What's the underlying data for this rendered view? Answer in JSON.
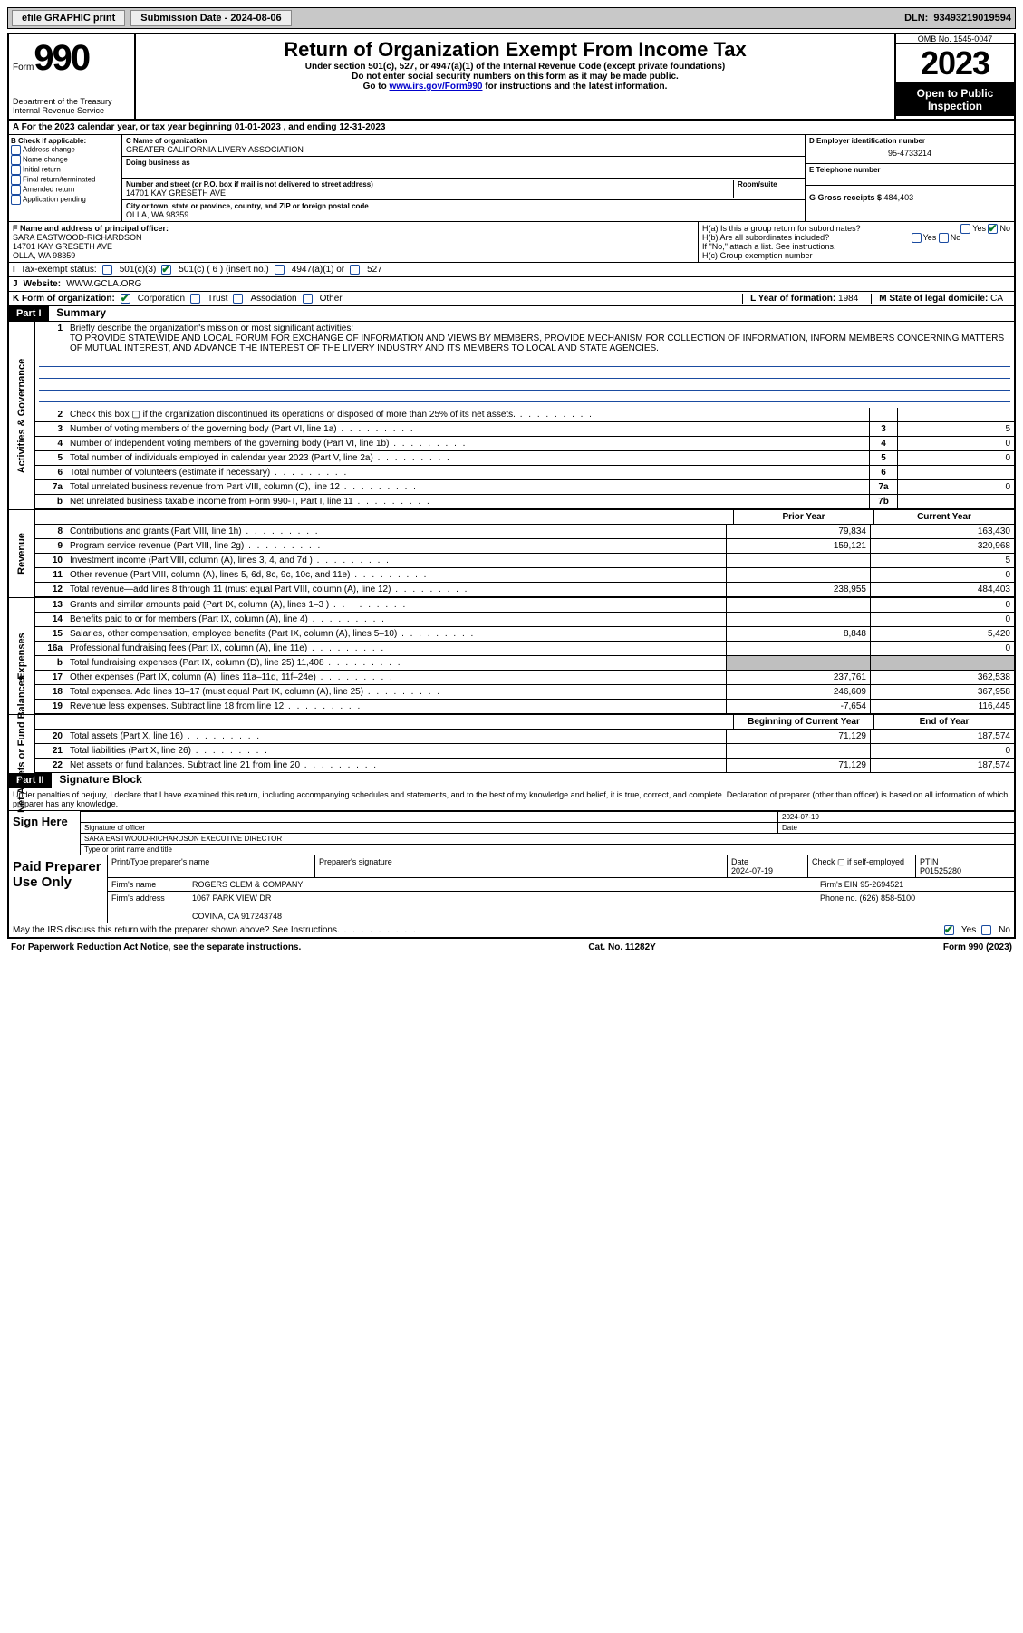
{
  "topbar": {
    "efile": "efile GRAPHIC print",
    "subdate_lbl": "Submission Date - ",
    "subdate": "2024-08-06",
    "dln_lbl": "DLN: ",
    "dln": "93493219019594"
  },
  "header": {
    "form_word": "Form",
    "form_no": "990",
    "dept": "Department of the Treasury",
    "irs": "Internal Revenue Service",
    "title": "Return of Organization Exempt From Income Tax",
    "sub1": "Under section 501(c), 527, or 4947(a)(1) of the Internal Revenue Code (except private foundations)",
    "sub2": "Do not enter social security numbers on this form as it may be made public.",
    "sub3_pre": "Go to ",
    "sub3_link": "www.irs.gov/Form990",
    "sub3_post": " for instructions and the latest information.",
    "omb": "OMB No. 1545-0047",
    "year": "2023",
    "open": "Open to Public Inspection"
  },
  "rowA": "A  For the 2023 calendar year, or tax year beginning 01-01-2023   , and ending 12-31-2023",
  "B": {
    "lbl": "B Check if applicable:",
    "opts": [
      "Address change",
      "Name change",
      "Initial return",
      "Final return/terminated",
      "Amended return",
      "Application pending"
    ]
  },
  "C": {
    "name_lbl": "C Name of organization",
    "name": "GREATER CALIFORNIA LIVERY ASSOCIATION",
    "dba_lbl": "Doing business as",
    "addr_lbl": "Number and street (or P.O. box if mail is not delivered to street address)",
    "addr": "14701 KAY GRESETH AVE",
    "room_lbl": "Room/suite",
    "city_lbl": "City or town, state or province, country, and ZIP or foreign postal code",
    "city": "OLLA, WA  98359"
  },
  "D": {
    "lbl": "D Employer identification number",
    "val": "95-4733214"
  },
  "E": {
    "lbl": "E Telephone number"
  },
  "G": {
    "lbl": "G Gross receipts $ ",
    "val": "484,403"
  },
  "F": {
    "lbl": "F  Name and address of principal officer:",
    "name": "SARA EASTWOOD-RICHARDSON",
    "addr1": "14701 KAY GRESETH AVE",
    "addr2": "OLLA, WA  98359"
  },
  "H": {
    "a": "H(a)  Is this a group return for subordinates?",
    "b": "H(b)  Are all subordinates included?",
    "bnote": "If \"No,\" attach a list. See instructions.",
    "c": "H(c)  Group exemption number"
  },
  "yes": "Yes",
  "no": "No",
  "I": {
    "lbl": "Tax-exempt status:",
    "o1": "501(c)(3)",
    "o2": "501(c) ( 6 ) (insert no.)",
    "o3": "4947(a)(1) or",
    "o4": "527"
  },
  "J": {
    "lbl": "Website:",
    "val": "WWW.GCLA.ORG"
  },
  "K": {
    "lbl": "K Form of organization:",
    "opts": [
      "Corporation",
      "Trust",
      "Association",
      "Other"
    ]
  },
  "L": {
    "lbl": "L Year of formation: ",
    "val": "1984"
  },
  "M": {
    "lbl": "M State of legal domicile: ",
    "val": "CA"
  },
  "part1": {
    "hdr": "Part I",
    "title": "Summary"
  },
  "sidelabels": {
    "gov": "Activities & Governance",
    "rev": "Revenue",
    "exp": "Expenses",
    "net": "Net Assets or Fund Balances"
  },
  "mission_lbl": "Briefly describe the organization's mission or most significant activities:",
  "mission": "TO PROVIDE STATEWIDE AND LOCAL FORUM FOR EXCHANGE OF INFORMATION AND VIEWS BY MEMBERS, PROVIDE MECHANISM FOR COLLECTION OF INFORMATION, INFORM MEMBERS CONCERNING MATTERS OF MUTUAL INTEREST, AND ADVANCE THE INTEREST OF THE LIVERY INDUSTRY AND ITS MEMBERS TO LOCAL AND STATE AGENCIES.",
  "gov_lines": [
    {
      "n": "2",
      "d": "Check this box ▢ if the organization discontinued its operations or disposed of more than 25% of its net assets.",
      "box": "",
      "val": ""
    },
    {
      "n": "3",
      "d": "Number of voting members of the governing body (Part VI, line 1a)",
      "box": "3",
      "val": "5"
    },
    {
      "n": "4",
      "d": "Number of independent voting members of the governing body (Part VI, line 1b)",
      "box": "4",
      "val": "0"
    },
    {
      "n": "5",
      "d": "Total number of individuals employed in calendar year 2023 (Part V, line 2a)",
      "box": "5",
      "val": "0"
    },
    {
      "n": "6",
      "d": "Total number of volunteers (estimate if necessary)",
      "box": "6",
      "val": ""
    },
    {
      "n": "7a",
      "d": "Total unrelated business revenue from Part VIII, column (C), line 12",
      "box": "7a",
      "val": "0"
    },
    {
      "n": "b",
      "d": "Net unrelated business taxable income from Form 990-T, Part I, line 11",
      "box": "7b",
      "val": ""
    }
  ],
  "col_hdr": {
    "prior": "Prior Year",
    "curr": "Current Year",
    "boy": "Beginning of Current Year",
    "eoy": "End of Year"
  },
  "rev_lines": [
    {
      "n": "8",
      "d": "Contributions and grants (Part VIII, line 1h)",
      "v1": "79,834",
      "v2": "163,430"
    },
    {
      "n": "9",
      "d": "Program service revenue (Part VIII, line 2g)",
      "v1": "159,121",
      "v2": "320,968"
    },
    {
      "n": "10",
      "d": "Investment income (Part VIII, column (A), lines 3, 4, and 7d )",
      "v1": "",
      "v2": "5"
    },
    {
      "n": "11",
      "d": "Other revenue (Part VIII, column (A), lines 5, 6d, 8c, 9c, 10c, and 11e)",
      "v1": "",
      "v2": "0"
    },
    {
      "n": "12",
      "d": "Total revenue—add lines 8 through 11 (must equal Part VIII, column (A), line 12)",
      "v1": "238,955",
      "v2": "484,403"
    }
  ],
  "exp_lines": [
    {
      "n": "13",
      "d": "Grants and similar amounts paid (Part IX, column (A), lines 1–3 )",
      "v1": "",
      "v2": "0"
    },
    {
      "n": "14",
      "d": "Benefits paid to or for members (Part IX, column (A), line 4)",
      "v1": "",
      "v2": "0"
    },
    {
      "n": "15",
      "d": "Salaries, other compensation, employee benefits (Part IX, column (A), lines 5–10)",
      "v1": "8,848",
      "v2": "5,420"
    },
    {
      "n": "16a",
      "d": "Professional fundraising fees (Part IX, column (A), line 11e)",
      "v1": "",
      "v2": "0"
    },
    {
      "n": "b",
      "d": "Total fundraising expenses (Part IX, column (D), line 25) 11,408",
      "v1": "shade",
      "v2": "shade"
    },
    {
      "n": "17",
      "d": "Other expenses (Part IX, column (A), lines 11a–11d, 11f–24e)",
      "v1": "237,761",
      "v2": "362,538"
    },
    {
      "n": "18",
      "d": "Total expenses. Add lines 13–17 (must equal Part IX, column (A), line 25)",
      "v1": "246,609",
      "v2": "367,958"
    },
    {
      "n": "19",
      "d": "Revenue less expenses. Subtract line 18 from line 12",
      "v1": "-7,654",
      "v2": "116,445"
    }
  ],
  "net_lines": [
    {
      "n": "20",
      "d": "Total assets (Part X, line 16)",
      "v1": "71,129",
      "v2": "187,574"
    },
    {
      "n": "21",
      "d": "Total liabilities (Part X, line 26)",
      "v1": "",
      "v2": "0"
    },
    {
      "n": "22",
      "d": "Net assets or fund balances. Subtract line 21 from line 20",
      "v1": "71,129",
      "v2": "187,574"
    }
  ],
  "part2": {
    "hdr": "Part II",
    "title": "Signature Block"
  },
  "perjury": "Under penalties of perjury, I declare that I have examined this return, including accompanying schedules and statements, and to the best of my knowledge and belief, it is true, correct, and complete. Declaration of preparer (other than officer) is based on all information of which preparer has any knowledge.",
  "sign": {
    "here": "Sign Here",
    "sig_lbl": "Signature of officer",
    "date_lbl": "Date",
    "date": "2024-07-19",
    "name": "SARA EASTWOOD-RICHARDSON  EXECUTIVE DIRECTOR",
    "name_lbl": "Type or print name and title"
  },
  "prep": {
    "title": "Paid Preparer Use Only",
    "h1": "Print/Type preparer's name",
    "h2": "Preparer's signature",
    "h3": "Date",
    "date": "2024-07-19",
    "h4": "Check ▢ if self-employed",
    "h5": "PTIN",
    "ptin": "P01525280",
    "firm_lbl": "Firm's name",
    "firm": "ROGERS CLEM & COMPANY",
    "ein_lbl": "Firm's EIN ",
    "ein": "95-2694521",
    "addr_lbl": "Firm's address",
    "addr1": "1067 PARK VIEW DR",
    "addr2": "COVINA, CA  917243748",
    "phone_lbl": "Phone no. ",
    "phone": "(626) 858-5100"
  },
  "discuss": "May the IRS discuss this return with the preparer shown above? See Instructions.",
  "footer": {
    "pra": "For Paperwork Reduction Act Notice, see the separate instructions.",
    "cat": "Cat. No. 11282Y",
    "form": "Form 990 (2023)"
  }
}
